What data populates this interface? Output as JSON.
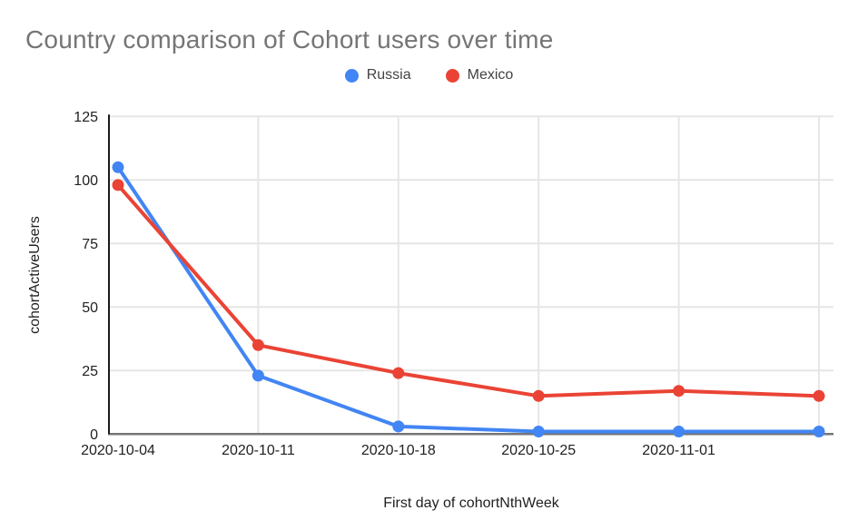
{
  "chart_data": {
    "type": "line",
    "title": "Country comparison of Cohort users over time",
    "xlabel": "First day of cohortNthWeek",
    "ylabel": "cohortActiveUsers",
    "categories": [
      "2020-10-04",
      "2020-10-11",
      "2020-10-18",
      "2020-10-25",
      "2020-11-01",
      ""
    ],
    "series": [
      {
        "name": "Russia",
        "color": "#4285F4",
        "values": [
          105,
          23,
          3,
          1,
          1,
          1
        ]
      },
      {
        "name": "Mexico",
        "color": "#EA4335",
        "values": [
          98,
          35,
          24,
          15,
          17,
          15
        ]
      }
    ],
    "ylim": [
      0,
      125
    ],
    "yticks": [
      0,
      25,
      50,
      75,
      100,
      125
    ],
    "grid": true,
    "legend_position": "top",
    "colors": {
      "title_text": "#757575",
      "axis_text": "#212121",
      "gridline": "#e6e6e6",
      "axis_line": "#1a1a1a",
      "baseline": "#757575",
      "background": "#ffffff"
    }
  }
}
